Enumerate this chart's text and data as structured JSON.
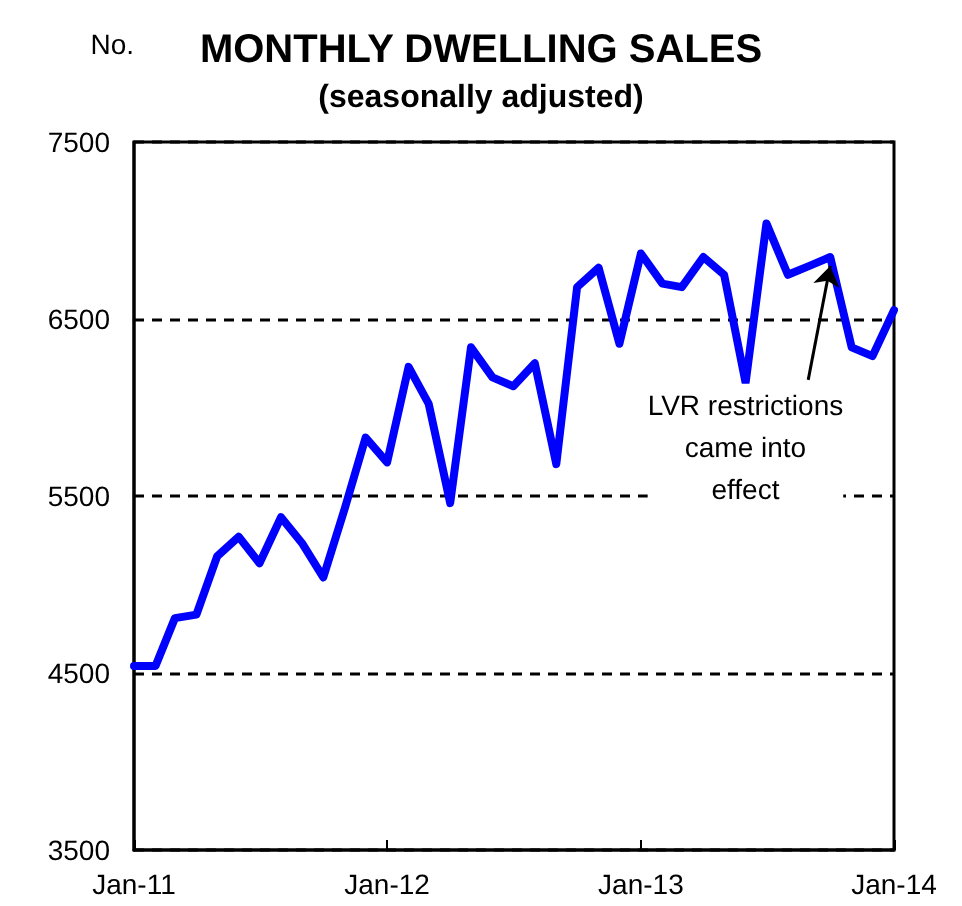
{
  "chart_data": {
    "type": "line",
    "title": "MONTHLY DWELLING SALES",
    "subtitle": "(seasonally adjusted)",
    "ylabel": "No.",
    "x": [
      "2011-01",
      "2011-02",
      "2011-03",
      "2011-04",
      "2011-05",
      "2011-06",
      "2011-07",
      "2011-08",
      "2011-09",
      "2011-10",
      "2011-11",
      "2011-12",
      "2012-01",
      "2012-02",
      "2012-03",
      "2012-04",
      "2012-05",
      "2012-06",
      "2012-07",
      "2012-08",
      "2012-09",
      "2012-10",
      "2012-11",
      "2012-12",
      "2013-01",
      "2013-02",
      "2013-03",
      "2013-04",
      "2013-05",
      "2013-06",
      "2013-07",
      "2013-08",
      "2013-09",
      "2013-10",
      "2013-11",
      "2013-12",
      "2014-01"
    ],
    "series": [
      {
        "color": "#0000ff",
        "values": [
          4540,
          4540,
          4810,
          4830,
          5160,
          5270,
          5120,
          5380,
          5230,
          5040,
          5430,
          5830,
          5690,
          6230,
          6020,
          5460,
          6340,
          6170,
          6120,
          6250,
          5680,
          6680,
          6790,
          6360,
          6870,
          6700,
          6680,
          6850,
          6750,
          6140,
          7040,
          6750,
          6800,
          6850,
          6340,
          6290,
          6550
        ]
      }
    ],
    "xlim": [
      "2011-01",
      "2014-01"
    ],
    "xticks": [
      {
        "value": "2011-01",
        "label": "Jan-11"
      },
      {
        "value": "2012-01",
        "label": "Jan-12"
      },
      {
        "value": "2013-01",
        "label": "Jan-13"
      },
      {
        "value": "2014-01",
        "label": "Jan-14"
      }
    ],
    "ylim": [
      3500,
      7500
    ],
    "yticks": [
      3500,
      4500,
      5500,
      6500,
      7500
    ],
    "grid": "y",
    "marker": "none",
    "line_style": "solid",
    "annotations": [
      {
        "text": "LVR restrictions came into effect",
        "x": "2013-10",
        "y": 6800
      }
    ]
  }
}
